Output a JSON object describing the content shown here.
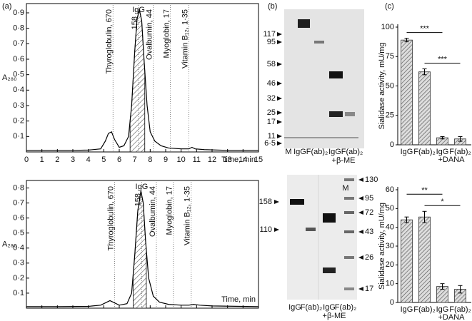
{
  "panels": [
    "(a)",
    "(b)",
    "(c)"
  ],
  "chart_data": [
    {
      "type": "line",
      "x_label": "Time, min",
      "y_label": "A₂₈₀",
      "color": "#000000",
      "x": [
        0,
        1,
        2,
        3,
        4,
        4.8,
        5.1,
        5.3,
        5.5,
        5.7,
        6.0,
        6.3,
        6.6,
        6.8,
        7.0,
        7.15,
        7.3,
        7.45,
        7.6,
        7.8,
        8.0,
        8.3,
        8.7,
        9.2,
        10,
        10.5,
        10.7,
        10.9,
        11.5,
        13,
        15
      ],
      "values": [
        0.01,
        0.01,
        0.01,
        0.01,
        0.012,
        0.02,
        0.07,
        0.12,
        0.13,
        0.08,
        0.03,
        0.04,
        0.1,
        0.3,
        0.65,
        0.86,
        0.92,
        0.85,
        0.6,
        0.3,
        0.13,
        0.07,
        0.04,
        0.025,
        0.02,
        0.02,
        0.03,
        0.02,
        0.015,
        0.01,
        0.01
      ],
      "xlim": [
        0,
        15
      ],
      "ylim": [
        0,
        0.96
      ],
      "xticks": [
        0,
        1,
        2,
        3,
        4,
        5,
        6,
        7,
        8,
        9,
        10,
        11,
        12,
        13,
        14,
        15
      ],
      "yticks": [
        {
          "value": 0.1,
          "label": "0·1"
        },
        {
          "value": 0.2,
          "label": "0·2"
        },
        {
          "value": 0.3,
          "label": "0·3"
        },
        {
          "value": 0.4,
          "label": "0·4"
        },
        {
          "value": 0.5,
          "label": "0·5"
        },
        {
          "value": 0.6,
          "label": "0·6"
        },
        {
          "value": 0.7,
          "label": "0·7"
        },
        {
          "value": 0.8,
          "label": "0·8"
        },
        {
          "value": 0.9,
          "label": "0·9"
        }
      ],
      "hatch": [
        6.7,
        7.65
      ],
      "annotations": [
        {
          "x": 5.6,
          "label": "Thyroglobulin, 670"
        },
        {
          "x": 7.25,
          "name": "IgG",
          "label": "158"
        },
        {
          "x": 8.2,
          "label": "Ovalbumin, 44"
        },
        {
          "x": 9.3,
          "label": "Myoglobin, 17"
        },
        {
          "x": 10.5,
          "label": "Vitamin B₁₂, 1·35"
        }
      ]
    },
    {
      "type": "line",
      "x_label": "Time, min",
      "y_label": "A₂₈₀",
      "color": "#000000",
      "xtick_labels": false,
      "x": [
        0,
        2,
        4,
        4.8,
        5.2,
        5.4,
        5.6,
        6.0,
        6.5,
        6.8,
        7.0,
        7.2,
        7.4,
        7.55,
        7.7,
        7.9,
        8.2,
        8.6,
        9.2,
        10,
        10.5,
        10.8,
        11.2,
        12,
        15
      ],
      "values": [
        0.01,
        0.01,
        0.012,
        0.02,
        0.04,
        0.05,
        0.04,
        0.02,
        0.03,
        0.1,
        0.35,
        0.65,
        0.78,
        0.7,
        0.45,
        0.2,
        0.08,
        0.04,
        0.025,
        0.02,
        0.02,
        0.025,
        0.02,
        0.015,
        0.01
      ],
      "xlim": [
        0,
        15
      ],
      "ylim": [
        0,
        0.85
      ],
      "xticks": [
        0,
        1,
        2,
        3,
        4,
        5,
        6,
        7,
        8,
        9,
        10,
        11,
        12,
        13,
        14,
        15
      ],
      "yticks": [
        {
          "value": 0.1,
          "label": "0·1"
        },
        {
          "value": 0.2,
          "label": "0·2"
        },
        {
          "value": 0.3,
          "label": "0·3"
        },
        {
          "value": 0.4,
          "label": "0·4"
        },
        {
          "value": 0.5,
          "label": "0·5"
        },
        {
          "value": 0.6,
          "label": "0·6"
        },
        {
          "value": 0.7,
          "label": "0·7"
        },
        {
          "value": 0.8,
          "label": "0·8"
        }
      ],
      "hatch": [
        6.9,
        7.75
      ],
      "annotations": [
        {
          "x": 5.7,
          "label": "Thyroglobulin, 670"
        },
        {
          "x": 7.45,
          "name": "IgG",
          "label": "158"
        },
        {
          "x": 8.4,
          "label": "Ovalbumin, 44"
        },
        {
          "x": 9.5,
          "label": "Myoglobin, 17"
        },
        {
          "x": 10.65,
          "label": "Vitamin B₁₂, 1·35"
        }
      ]
    },
    {
      "type": "bar",
      "y_label": "Sialidase activity, mU/mg",
      "color": "#888888",
      "categories": [
        "IgG",
        "F(ab)₂",
        "IgG",
        "F(ab)₂"
      ],
      "values": [
        89,
        62,
        6,
        5
      ],
      "errors": [
        1.5,
        2.5,
        1,
        2
      ],
      "ylim": [
        0,
        100
      ],
      "yticks": [
        0,
        25,
        50,
        75,
        100
      ],
      "group_labels": [
        {
          "label": "+DANA",
          "categories": [
            2,
            3
          ]
        }
      ],
      "significance": [
        {
          "label": "***",
          "categories": [
            0,
            2
          ]
        },
        {
          "label": "***",
          "categories": [
            1,
            3
          ]
        }
      ]
    },
    {
      "type": "bar",
      "y_label": "Sialidase activity, mU/mg",
      "color": "#888888",
      "categories": [
        "IgG",
        "F(ab)₂",
        "IgG",
        "F(ab)₂"
      ],
      "values": [
        44,
        45.5,
        8.5,
        7
      ],
      "errors": [
        1.5,
        3,
        1.5,
        2
      ],
      "ylim": [
        0,
        60
      ],
      "yticks": [
        0,
        10,
        20,
        30,
        40,
        50,
        60
      ],
      "group_labels": [
        {
          "label": "+DANA",
          "categories": [
            2,
            3
          ]
        }
      ],
      "significance": [
        {
          "label": "**",
          "categories": [
            0,
            2
          ]
        },
        {
          "label": "*",
          "categories": [
            1,
            3
          ]
        }
      ]
    }
  ],
  "gels": [
    {
      "markers": [
        "117",
        "95",
        "58",
        "46",
        "32",
        "25",
        "17",
        "11",
        "6·5"
      ],
      "lanes": [
        "M",
        "IgG",
        "F(ab)₂",
        "IgG",
        "F(ab)₂"
      ],
      "lane_note": "+β-ME"
    },
    {
      "left_markers": [
        "158",
        "110"
      ],
      "right_markers": [
        "130",
        "95",
        "72",
        "43",
        "26",
        "17"
      ],
      "marker_lane": "M",
      "lanes": [
        "IgG",
        "F(ab)₂",
        "IgG",
        "F(ab)₂"
      ],
      "lane_note": "+β-ME"
    }
  ]
}
